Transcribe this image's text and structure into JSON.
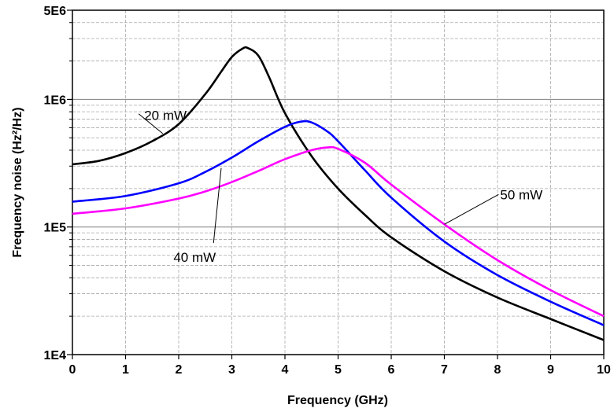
{
  "chart_data": {
    "type": "line",
    "xlabel": "Frequency (GHz)",
    "ylabel": "Frequency noise (Hz²/Hz)",
    "xlim": [
      0,
      10
    ],
    "ylim": [
      10000,
      5000000
    ],
    "yscale": "log",
    "grid": true,
    "x_ticks": [
      0,
      1,
      2,
      3,
      4,
      5,
      6,
      7,
      8,
      9,
      10
    ],
    "x_tick_labels": [
      "0",
      "1",
      "2",
      "3",
      "4",
      "5",
      "6",
      "7",
      "8",
      "9",
      "10"
    ],
    "y_ticks": [
      10000,
      100000,
      1000000,
      5000000
    ],
    "y_tick_labels": [
      "1E4",
      "1E5",
      "1E6",
      "5E6"
    ],
    "series": [
      {
        "color": "#000000",
        "x": [
          0,
          0.5,
          1,
          1.5,
          2,
          2.5,
          2.8,
          3.0,
          3.2,
          3.3,
          3.5,
          3.7,
          4.0,
          4.5,
          5.0,
          5.5,
          6.0,
          7.0,
          8.0,
          9.0,
          10.0
        ],
        "y": [
          310000,
          330000,
          380000,
          470000,
          640000,
          1100000,
          1650000,
          2150000,
          2500000,
          2530000,
          2200000,
          1500000,
          780000,
          360000,
          200000,
          125000,
          83000,
          45000,
          28000,
          19000,
          13000
        ]
      },
      {
        "color": "#0000ff",
        "x": [
          0,
          1,
          2,
          2.5,
          3,
          3.5,
          4.0,
          4.3,
          4.5,
          4.8,
          5.0,
          5.5,
          6.0,
          7.0,
          8.0,
          9.0,
          10.0
        ],
        "y": [
          158000,
          175000,
          220000,
          270000,
          350000,
          470000,
          610000,
          670000,
          660000,
          560000,
          470000,
          280000,
          170000,
          77000,
          42000,
          26000,
          17000
        ]
      },
      {
        "color": "#ff00ff",
        "x": [
          0,
          1,
          2,
          2.5,
          3,
          3.5,
          4.0,
          4.5,
          4.8,
          5.0,
          5.5,
          6.0,
          7.0,
          8.0,
          9.0,
          10.0
        ],
        "y": [
          127000,
          140000,
          167000,
          190000,
          225000,
          275000,
          340000,
          400000,
          420000,
          410000,
          320000,
          215000,
          105000,
          55000,
          32000,
          20000
        ]
      }
    ],
    "annotations": [
      {
        "text": "20 mW",
        "x": 1.75,
        "y": 750000,
        "target_x": 1.7,
        "target_y": 540000
      },
      {
        "text": "40 mW",
        "x": 2.3,
        "y": 58000,
        "target_x": 2.8,
        "target_y": 290000
      },
      {
        "text": "50 mW",
        "x": 8.05,
        "y": 180000,
        "target_x": 7.0,
        "target_y": 105000
      }
    ]
  }
}
